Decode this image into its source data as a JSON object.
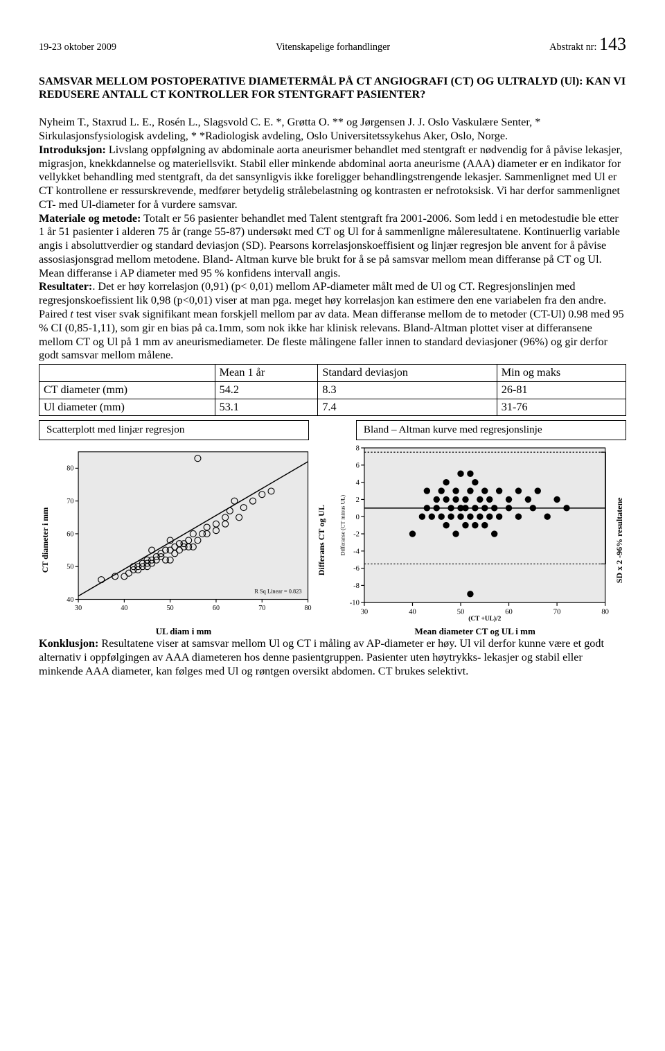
{
  "header": {
    "date": "19-23 oktober 2009",
    "series": "Vitenskapelige forhandlinger",
    "abstrakt_label": "Abstrakt nr:",
    "abstrakt_num": "143"
  },
  "title": "SAMSVAR MELLOM POSTOPERATIVE DIAMETERMÅL PÅ CT ANGIOGRAFI (CT) OG ULTRALYD (Ul): KAN VI REDUSERE ANTALL CT KONTROLLER FOR STENTGRAFT PASIENTER?",
  "authors": "Nyheim T., Staxrud L. E., Rosén L., Slagsvold C. E. *, Grøtta O. ** og Jørgensen J. J. Oslo Vaskulære Senter, * Sirkulasjonsfysiologisk avdeling, * *Radiologisk avdeling, Oslo Universitetssykehus Aker, Oslo, Norge.",
  "sections": {
    "intro_label": "Introduksjon:",
    "intro": " Livslang oppfølgning av abdominale aorta aneurismer behandlet med stentgraft er nødvendig for å påvise lekasjer, migrasjon, knekkdannelse og materiellsvikt. Stabil eller minkende abdominal aorta aneurisme (AAA) diameter er en indikator for vellykket behandling med stentgraft, da det sansynligvis ikke foreligger behandlingstrengende lekasjer. Sammenlignet med Ul er CT kontrollene er ressurskrevende, medfører betydelig strålebelastning og kontrasten er nefrotoksisk. Vi har derfor sammenlignet CT- med Ul-diameter for å vurdere samsvar.",
    "mm_label": "Materiale og metode:",
    "mm": " Totalt er 56 pasienter behandlet med Talent stentgraft fra 2001-2006. Som ledd i en metodestudie ble etter 1 år  51 pasienter i alderen 75 år (range 55-87) undersøkt med CT og Ul for å sammenligne måleresultatene. Kontinuerlig variable angis i absoluttverdier og standard deviasjon (SD). Pearsons korrelasjonskoeffisient og linjær regresjon ble anvent for å påvise assosiasjonsgrad mellom metodene. Bland- Altman kurve ble brukt for å se på samsvar mellom mean differanse på CT og Ul. Mean differanse i AP diameter med 95 % konfidens intervall angis.",
    "res_label": "Resultater:",
    "res_a": ".  Det er høy korrelasjon (0,91) (p< 0,01) mellom AP-diameter målt med de Ul og CT. Regresjonslinjen med regresjonskoefissient lik 0,98 (p<0,01) viser at man pga. meget høy korrelasjon kan estimere den ene variabelen fra den andre. Paired ",
    "res_t": "t",
    "res_b": " test viser svak signifikant mean forskjell mellom par av data. Mean differanse mellom de to metoder (CT-Ul) 0.98 med 95 % CI (0,85-1,11), som gir en bias på ca.1mm, som nok ikke har klinisk relevans. Bland-Altman plottet viser at differansene mellom CT og Ul på 1 mm av aneurismediameter. De fleste målingene faller innen to standard deviasjoner (96%) og gir derfor godt samsvar mellom målene.",
    "concl_label": "Konklusjon:",
    "concl": " Resultatene viser at samsvar mellom Ul og CT i måling av AP-diameter er høy. Ul vil derfor kunne være et godt alternativ i oppfølgingen av AAA diameteren hos denne pasientgruppen. Pasienter uten høytrykks- lekasjer og stabil eller minkende AAA diameter, kan følges med Ul og røntgen oversikt abdomen. CT brukes selektivt."
  },
  "table": {
    "headers": [
      "",
      "Mean 1 år",
      "Standard deviasjon",
      "Min og maks"
    ],
    "rows": [
      [
        "CT diameter (mm)",
        "54.2",
        "8.3",
        "26-81"
      ],
      [
        "Ul diameter (mm)",
        "53.1",
        "7.4",
        "31-76"
      ]
    ]
  },
  "figs": {
    "left_label": "Scatterplott med linjær regresjon",
    "right_label": "Bland – Altman kurve med regresjonslinje",
    "left_yaxis": "CT diameter i mm",
    "left_xaxis": "UL diam i mm",
    "mid_yaxis": "Differans CT og UL",
    "right_yaxis": "SD x 2 -96% resultatene",
    "right_xaxis": "Mean diameter CT og UL i mm",
    "scatter": {
      "type": "scatter",
      "xlim": [
        30,
        80
      ],
      "ylim": [
        40,
        85
      ],
      "xticks": [
        30,
        40,
        50,
        60,
        70,
        80
      ],
      "yticks": [
        40,
        50,
        60,
        70,
        80
      ],
      "xtick_labels": [
        "30",
        "40",
        "50",
        "60",
        "70",
        "80"
      ],
      "ytick_labels": [
        "40",
        "50",
        "60",
        "70",
        "80"
      ],
      "bg": "#e9e9e9",
      "frame": "#000000",
      "marker": "circle-open",
      "marker_size": 4,
      "marker_color": "#000000",
      "line_color": "#000000",
      "rsq_text": "R Sq Linear = 0.823",
      "points": [
        [
          35,
          46
        ],
        [
          38,
          47
        ],
        [
          40,
          47
        ],
        [
          41,
          48
        ],
        [
          42,
          49
        ],
        [
          42,
          50
        ],
        [
          43,
          49
        ],
        [
          43,
          50
        ],
        [
          44,
          50
        ],
        [
          44,
          51
        ],
        [
          45,
          50
        ],
        [
          45,
          51
        ],
        [
          45,
          52
        ],
        [
          46,
          51
        ],
        [
          46,
          52
        ],
        [
          46,
          55
        ],
        [
          47,
          52
        ],
        [
          47,
          53
        ],
        [
          48,
          53
        ],
        [
          48,
          54
        ],
        [
          49,
          52
        ],
        [
          49,
          55
        ],
        [
          50,
          52
        ],
        [
          50,
          55
        ],
        [
          50,
          58
        ],
        [
          51,
          54
        ],
        [
          51,
          56
        ],
        [
          52,
          55
        ],
        [
          52,
          57
        ],
        [
          53,
          56
        ],
        [
          53,
          57
        ],
        [
          54,
          56
        ],
        [
          54,
          58
        ],
        [
          55,
          56
        ],
        [
          55,
          60
        ],
        [
          56,
          58
        ],
        [
          57,
          60
        ],
        [
          58,
          60
        ],
        [
          58,
          62
        ],
        [
          60,
          61
        ],
        [
          60,
          63
        ],
        [
          62,
          63
        ],
        [
          62,
          65
        ],
        [
          63,
          67
        ],
        [
          64,
          70
        ],
        [
          65,
          65
        ],
        [
          66,
          68
        ],
        [
          68,
          70
        ],
        [
          70,
          72
        ],
        [
          56,
          83
        ],
        [
          72,
          73
        ]
      ],
      "reg_line": [
        [
          30,
          41
        ],
        [
          80,
          82
        ]
      ]
    },
    "ba": {
      "type": "scatter",
      "xlim": [
        30,
        80
      ],
      "ylim": [
        -10,
        8
      ],
      "xticks": [
        30,
        40,
        50,
        60,
        70,
        80
      ],
      "yticks": [
        -10,
        -8,
        -6,
        -4,
        -2,
        0,
        2,
        4,
        6,
        8
      ],
      "xtick_labels": [
        "30",
        "40",
        "50",
        "60",
        "70",
        "80"
      ],
      "ytick_labels": [
        "-10",
        "-8",
        "-6",
        "-4",
        "-2",
        "0",
        "2",
        "4",
        "6",
        "8"
      ],
      "bg": "#e9e9e9",
      "frame": "#000000",
      "marker": "circle-fill",
      "marker_size": 3.5,
      "marker_color": "#000000",
      "axis_title_y": "Differanse (CT minus UL)",
      "axis_title_x": "(CT +UL)/2",
      "upper_sd": 7.5,
      "lower_sd": -5.5,
      "mean_line": 1.0,
      "dashed_color": "#000000",
      "points": [
        [
          40,
          -2
        ],
        [
          42,
          0
        ],
        [
          43,
          1
        ],
        [
          43,
          3
        ],
        [
          44,
          0
        ],
        [
          45,
          1
        ],
        [
          45,
          2
        ],
        [
          46,
          0
        ],
        [
          46,
          3
        ],
        [
          47,
          -1
        ],
        [
          47,
          2
        ],
        [
          47,
          4
        ],
        [
          48,
          0
        ],
        [
          48,
          1
        ],
        [
          49,
          -2
        ],
        [
          49,
          2
        ],
        [
          49,
          3
        ],
        [
          50,
          0
        ],
        [
          50,
          1
        ],
        [
          50,
          5
        ],
        [
          51,
          -1
        ],
        [
          51,
          1
        ],
        [
          51,
          2
        ],
        [
          52,
          0
        ],
        [
          52,
          3
        ],
        [
          52,
          5
        ],
        [
          53,
          -1
        ],
        [
          53,
          1
        ],
        [
          53,
          4
        ],
        [
          54,
          0
        ],
        [
          54,
          2
        ],
        [
          55,
          -1
        ],
        [
          55,
          1
        ],
        [
          55,
          3
        ],
        [
          56,
          0
        ],
        [
          56,
          2
        ],
        [
          57,
          -2
        ],
        [
          57,
          1
        ],
        [
          58,
          0
        ],
        [
          58,
          3
        ],
        [
          60,
          1
        ],
        [
          60,
          2
        ],
        [
          62,
          0
        ],
        [
          62,
          3
        ],
        [
          64,
          2
        ],
        [
          65,
          1
        ],
        [
          66,
          3
        ],
        [
          68,
          0
        ],
        [
          70,
          2
        ],
        [
          72,
          1
        ],
        [
          52,
          -9
        ]
      ]
    }
  }
}
